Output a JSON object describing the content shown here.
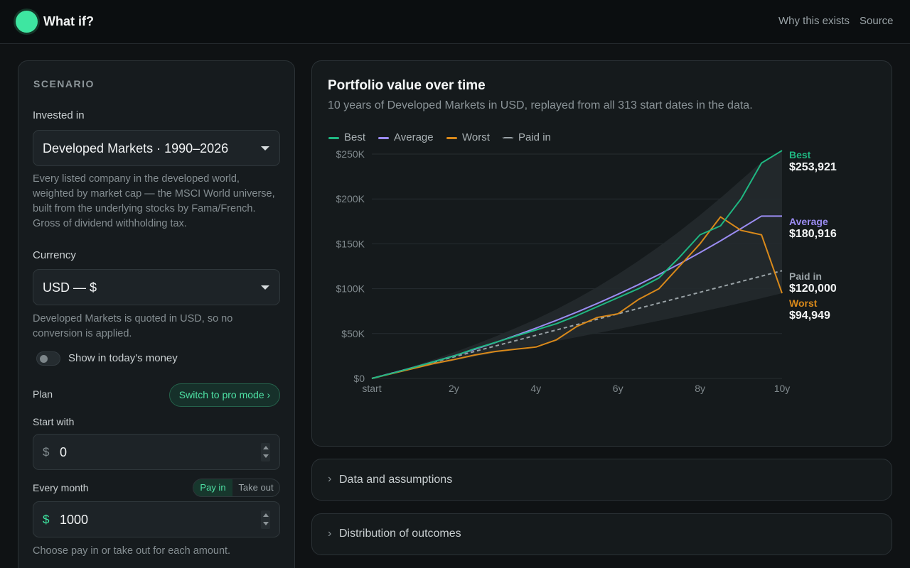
{
  "app": {
    "title": "What if?"
  },
  "nav": {
    "why": "Why this exists",
    "source": "Source"
  },
  "scenario": {
    "title": "SCENARIO",
    "invested_label": "Invested in",
    "invested_value": "Developed Markets · 1990–2026",
    "invested_help": "Every listed company in the developed world, weighted by market cap — the MSCI World universe, built from the underlying stocks by Fama/French. Gross of dividend withholding tax.",
    "currency_label": "Currency",
    "currency_value": "USD — $",
    "currency_help": "Developed Markets is quoted in USD, so no conversion is applied.",
    "todays_money_label": "Show in today's money",
    "todays_money_on": false,
    "plan_label": "Plan",
    "pro_mode_button": "Switch to pro mode ›",
    "start_label": "Start with",
    "start_currency": "$",
    "start_value": "0",
    "monthly_label": "Every month",
    "pay_in": "Pay in",
    "take_out": "Take out",
    "monthly_selected": "Pay in",
    "monthly_currency": "$",
    "monthly_value": "1000",
    "monthly_help": "Choose pay in or take out for each amount."
  },
  "chart_card": {
    "title": "Portfolio value over time",
    "subtitle": "10 years of Developed Markets in USD, replayed from all 313 start dates in the data.",
    "legend": [
      "Best",
      "Average",
      "Worst",
      "Paid in"
    ]
  },
  "chart_data": {
    "type": "line",
    "xlabel": "",
    "ylabel": "",
    "x_ticks": [
      "start",
      "2y",
      "4y",
      "6y",
      "8y",
      "10y"
    ],
    "y_ticks": [
      "$0",
      "$50K",
      "$100K",
      "$150K",
      "$200K",
      "$250K"
    ],
    "xlim": [
      0,
      10
    ],
    "ylim": [
      0,
      250000
    ],
    "grid": true,
    "legend_position": "top-left",
    "x": [
      0,
      0.5,
      1,
      1.5,
      2,
      2.5,
      3,
      3.5,
      4,
      4.5,
      5,
      5.5,
      6,
      6.5,
      7,
      7.5,
      8,
      8.5,
      9,
      9.5,
      10
    ],
    "series": [
      {
        "name": "Best",
        "color": "#1fb882",
        "end_label": "$253,921",
        "values": [
          0,
          5800,
          12000,
          18500,
          25000,
          33000,
          40000,
          47000,
          54000,
          61000,
          70000,
          80000,
          90000,
          100000,
          112000,
          135000,
          160000,
          170000,
          200000,
          240000,
          253921
        ]
      },
      {
        "name": "Average",
        "color": "#9b8cf2",
        "end_label": "$180,916",
        "values": [
          0,
          6000,
          12100,
          18500,
          25200,
          32300,
          39800,
          47700,
          56000,
          64700,
          73900,
          83600,
          93800,
          104500,
          115800,
          127700,
          140200,
          153300,
          167000,
          180916,
          180916
        ]
      },
      {
        "name": "Worst",
        "color": "#d9891a",
        "end_label": "$94,949",
        "values": [
          0,
          5500,
          11000,
          16500,
          21000,
          26000,
          30000,
          32500,
          35000,
          43000,
          58000,
          68000,
          72000,
          88000,
          100000,
          125000,
          150000,
          180000,
          165000,
          160000,
          94949
        ]
      },
      {
        "name": "Paid in",
        "color": "#9aa3a7",
        "end_label": "$120,000",
        "values": [
          0,
          6000,
          12000,
          18000,
          24000,
          30000,
          36000,
          42000,
          48000,
          54000,
          60000,
          66000,
          72000,
          78000,
          84000,
          90000,
          96000,
          102000,
          108000,
          114000,
          120000
        ]
      }
    ],
    "band": {
      "upper": [
        0,
        6500,
        13500,
        21000,
        29000,
        37500,
        46500,
        56000,
        66000,
        77000,
        89000,
        102000,
        116000,
        131000,
        147000,
        164000,
        182000,
        201000,
        221000,
        241000,
        253921
      ],
      "lower": [
        0,
        5200,
        10200,
        15000,
        19600,
        24100,
        28500,
        32900,
        37200,
        41600,
        46000,
        50500,
        55000,
        59600,
        64300,
        69100,
        74000,
        79000,
        84100,
        89400,
        94949
      ]
    }
  },
  "accordions": {
    "data": "Data and assumptions",
    "distribution": "Distribution of outcomes",
    "chevron": "›"
  }
}
